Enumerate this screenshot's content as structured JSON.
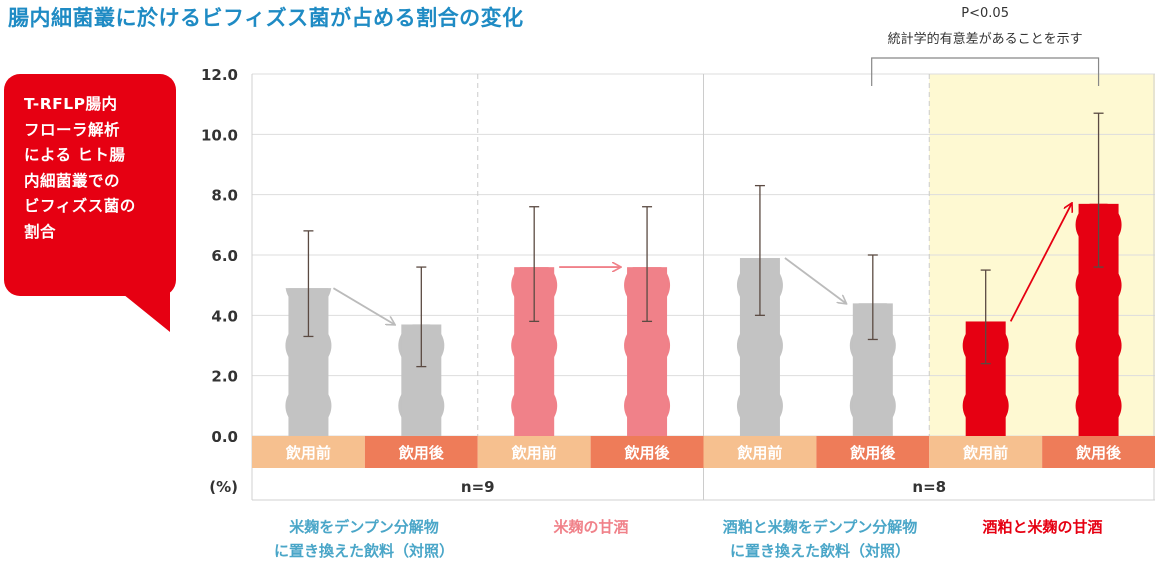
{
  "title": "腸内細菌叢に於けるビフィズス菌が占める割合の変化",
  "callout": {
    "text": "T-RFLP腸内\nフローラ解析\nによる ヒト腸\n内細菌叢での\nビフィズス菌の\n割合"
  },
  "significance": {
    "p_value": "P<0.05",
    "note": "統計学的有意差があることを示す"
  },
  "colors": {
    "title": "#1f8bc4",
    "control": "#c3c3c3",
    "amazake_koji": "#f08189",
    "sake_kasu_koji": "#e60012",
    "before_label_bg": "#f6c08f",
    "after_label_bg": "#ee7c59",
    "highlight_bg": "#fef9d2",
    "cond_control_text": "#4aa6c8",
    "cond_koji_text": "#f08189",
    "cond_kasu_text": "#e60012"
  },
  "n_labels": [
    "n=9",
    "n=8"
  ],
  "conditions": [
    {
      "line1": "米麹をデンプン分解物",
      "line2": "に置き換えた飲料（対照）",
      "color_key": "cond_control_text"
    },
    {
      "line1": "米麹の甘酒",
      "line2": "",
      "color_key": "cond_koji_text"
    },
    {
      "line1": "酒粕と米麹をデンプン分解物",
      "line2": "に置き換えた飲料（対照）",
      "color_key": "cond_control_text"
    },
    {
      "line1": "酒粕と米麹の甘酒",
      "line2": "",
      "color_key": "cond_kasu_text"
    }
  ],
  "chart_data": {
    "type": "bar",
    "ylabel": "(%)",
    "ylim": [
      0,
      12
    ],
    "yticks": [
      "0.0",
      "2.0",
      "4.0",
      "6.0",
      "8.0",
      "10.0",
      "12.0"
    ],
    "categories": [
      "飲用前",
      "飲用後",
      "飲用前",
      "飲用後",
      "飲用前",
      "飲用後",
      "飲用前",
      "飲用後"
    ],
    "values": [
      4.9,
      3.7,
      5.6,
      5.6,
      5.9,
      4.4,
      3.8,
      7.7
    ],
    "error_low": [
      3.3,
      2.3,
      3.8,
      3.8,
      4.0,
      3.2,
      2.4,
      5.6
    ],
    "error_high": [
      6.8,
      5.6,
      7.6,
      7.6,
      8.3,
      6.0,
      5.5,
      10.7
    ],
    "bar_color_keys": [
      "control",
      "control",
      "amazake_koji",
      "amazake_koji",
      "control",
      "control",
      "sake_kasu_koji",
      "sake_kasu_koji"
    ],
    "category_bg_keys": [
      "before_label_bg",
      "after_label_bg",
      "before_label_bg",
      "after_label_bg",
      "before_label_bg",
      "after_label_bg",
      "before_label_bg",
      "after_label_bg"
    ],
    "grid": true,
    "significant_pair": [
      6,
      7
    ]
  }
}
